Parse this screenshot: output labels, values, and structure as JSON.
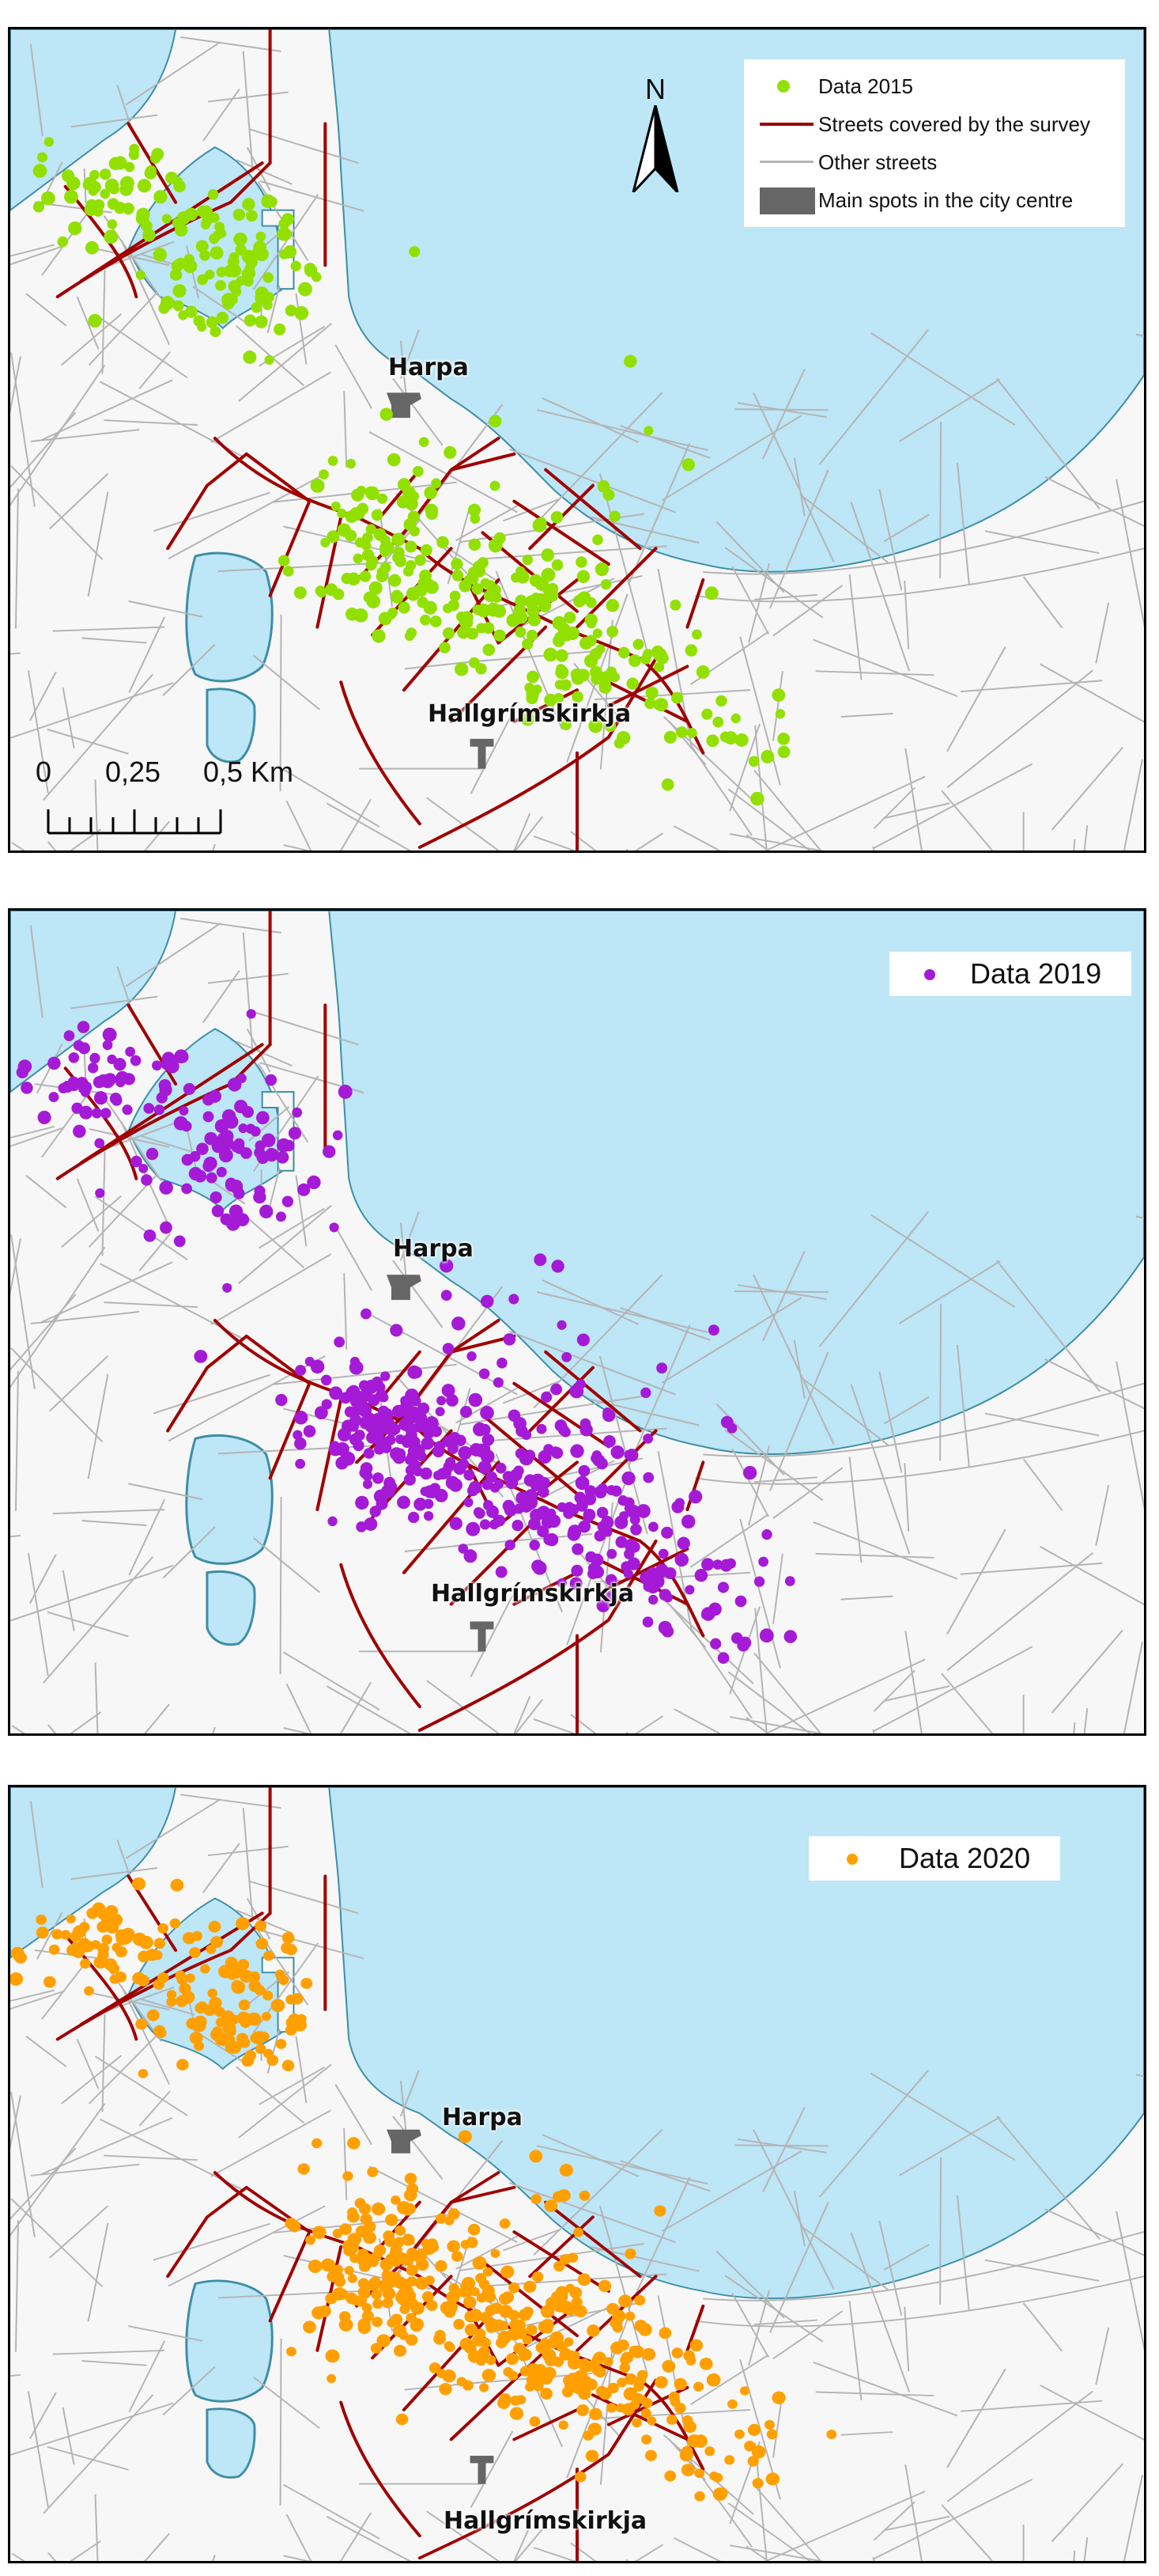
{
  "panels": [
    {
      "legend": {
        "rows": [
          {
            "label": "Data 2015",
            "symbol": "dot",
            "color": "#92e000"
          },
          {
            "label": "Streets covered by the survey",
            "symbol": "line",
            "color": "#a00000"
          },
          {
            "label": "Other streets",
            "symbol": "line",
            "color": "#b4b4b4"
          },
          {
            "label": "Main spots in the city centre",
            "symbol": "rect",
            "color": "#666666"
          }
        ]
      },
      "dot_color": "#92e000",
      "north_label": "N",
      "scale": {
        "labels": [
          "0",
          "0,25",
          "0,5 Km"
        ]
      },
      "places": {
        "harpa": "Harpa",
        "hallgrimskirkja": "Hallgrímskirkja"
      }
    },
    {
      "legend": {
        "rows": [
          {
            "label": "Data 2019",
            "symbol": "dot",
            "color": "#a51ad6"
          }
        ]
      },
      "dot_color": "#a51ad6",
      "places": {
        "harpa": "Harpa",
        "hallgrimskirkja": "Hallgrímskirkja"
      }
    },
    {
      "legend": {
        "rows": [
          {
            "label": "Data 2020",
            "symbol": "dot",
            "color": "#ffa000"
          }
        ]
      },
      "dot_color": "#ffa000",
      "places": {
        "harpa": "Harpa",
        "hallgrimskirkja": "Hallgrímskirkja"
      }
    }
  ],
  "colors": {
    "water": "#bde6f7",
    "coast": "#3d8ea6",
    "land": "#f7f7f7",
    "survey_street": "#a00000",
    "other_street": "#b4b4b4",
    "spot": "#666666"
  }
}
